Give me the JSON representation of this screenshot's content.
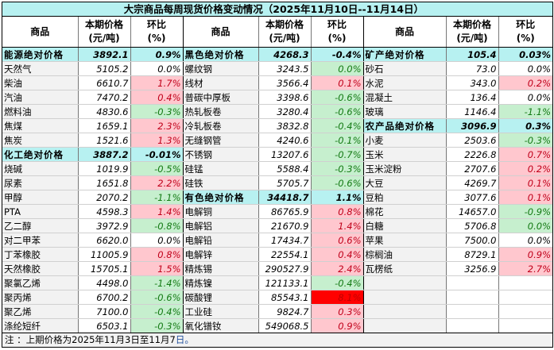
{
  "title": "大宗商品每周现货价格变动情况（2025年11月10日--11月14日）",
  "headers": {
    "name": "商品",
    "price_l1": "本期价格",
    "price_l2": "(元/吨)",
    "chg_l1": "环比",
    "chg_l2": "(%)"
  },
  "columns": [
    {
      "rows": [
        {
          "name": "能源绝对价格",
          "price": "3892.1",
          "chg": "0.9%",
          "type": "cat"
        },
        {
          "name": "天然气",
          "price": "5105.2",
          "chg": "0.0%",
          "type": "flat"
        },
        {
          "name": "柴油",
          "price": "6610.7",
          "chg": "1.7%",
          "type": "up"
        },
        {
          "name": "汽油",
          "price": "7470.2",
          "chg": "0.4%",
          "type": "up"
        },
        {
          "name": "燃料油",
          "price": "4830.6",
          "chg": "-0.3%",
          "type": "down"
        },
        {
          "name": "焦煤",
          "price": "1659.1",
          "chg": "2.3%",
          "type": "up"
        },
        {
          "name": "焦炭",
          "price": "1521.6",
          "chg": "1.3%",
          "type": "up"
        },
        {
          "name": "化工绝对价格",
          "price": "3887.2",
          "chg": "-0.01%",
          "type": "cat"
        },
        {
          "name": "烧碱",
          "price": "1019.9",
          "chg": "-0.5%",
          "type": "down"
        },
        {
          "name": "尿素",
          "price": "1651.8",
          "chg": "2.2%",
          "type": "up"
        },
        {
          "name": "甲醇",
          "price": "2070.2",
          "chg": "-1.1%",
          "type": "down"
        },
        {
          "name": "PTA",
          "price": "4598.3",
          "chg": "1.4%",
          "type": "up"
        },
        {
          "name": "乙二醇",
          "price": "3972.9",
          "chg": "-0.8%",
          "type": "down"
        },
        {
          "name": "对二甲苯",
          "price": "6620.0",
          "chg": "0.0%",
          "type": "flat"
        },
        {
          "name": "丁苯橡胶",
          "price": "11005.9",
          "chg": "0.8%",
          "type": "up"
        },
        {
          "name": "天然橡胶",
          "price": "15705.1",
          "chg": "1.5%",
          "type": "up"
        },
        {
          "name": "聚氯乙烯",
          "price": "4498.0",
          "chg": "-1.4%",
          "type": "down"
        },
        {
          "name": "聚丙烯",
          "price": "6700.2",
          "chg": "-0.6%",
          "type": "down"
        },
        {
          "name": "聚乙烯",
          "price": "7100.0",
          "chg": "-0.4%",
          "type": "down"
        },
        {
          "name": "涤纶短纤",
          "price": "6503.1",
          "chg": "-0.3%",
          "type": "down"
        }
      ]
    },
    {
      "rows": [
        {
          "name": "黑色绝对价格",
          "price": "4268.3",
          "chg": "-0.4%",
          "type": "cat"
        },
        {
          "name": "螺纹钢",
          "price": "3243.5",
          "chg": "0.0%",
          "type": "flat-g"
        },
        {
          "name": "线材",
          "price": "3566.4",
          "chg": "0.1%",
          "type": "up"
        },
        {
          "name": "普碳中厚板",
          "price": "3398.6",
          "chg": "-0.6%",
          "type": "down"
        },
        {
          "name": "热轧板卷",
          "price": "3280.4",
          "chg": "-0.6%",
          "type": "down"
        },
        {
          "name": "冷轧板卷",
          "price": "3832.8",
          "chg": "-0.4%",
          "type": "down"
        },
        {
          "name": "无缝钢管",
          "price": "4240.6",
          "chg": "-0.1%",
          "type": "down"
        },
        {
          "name": "不锈钢",
          "price": "13207.6",
          "chg": "-0.7%",
          "type": "down"
        },
        {
          "name": "硅锰",
          "price": "5588.4",
          "chg": "-0.3%",
          "type": "down"
        },
        {
          "name": "硅铁",
          "price": "5705.7",
          "chg": "-0.6%",
          "type": "down"
        },
        {
          "name": "有色绝对价格",
          "price": "34418.7",
          "chg": "1.1%",
          "type": "cat"
        },
        {
          "name": "电解铜",
          "price": "86765.9",
          "chg": "0.8%",
          "type": "up"
        },
        {
          "name": "电解铝",
          "price": "21670.9",
          "chg": "1.4%",
          "type": "up"
        },
        {
          "name": "电解铅",
          "price": "17434.7",
          "chg": "0.6%",
          "type": "up"
        },
        {
          "name": "电解锌",
          "price": "22554.1",
          "chg": "0.4%",
          "type": "up"
        },
        {
          "name": "精炼锡",
          "price": "290527.9",
          "chg": "2.4%",
          "type": "up"
        },
        {
          "name": "精炼镍",
          "price": "121133.1",
          "chg": "-0.4%",
          "type": "down"
        },
        {
          "name": "碳酸锂",
          "price": "85543.1",
          "chg": "8.1%",
          "type": "hot"
        },
        {
          "name": "工业硅",
          "price": "9824.7",
          "chg": "0.3%",
          "type": "up"
        },
        {
          "name": "氧化镨钕",
          "price": "549068.5",
          "chg": "0.9%",
          "type": "up"
        }
      ]
    },
    {
      "rows": [
        {
          "name": "矿产绝对价格",
          "price": "105.4",
          "chg": "0.03%",
          "type": "cat"
        },
        {
          "name": "砂石",
          "price": "73.0",
          "chg": "0.0%",
          "type": "flat"
        },
        {
          "name": "水泥",
          "price": "343.0",
          "chg": "0.2%",
          "type": "up"
        },
        {
          "name": "混凝土",
          "price": "136.4",
          "chg": "0.0%",
          "type": "flat"
        },
        {
          "name": "玻璃",
          "price": "1146.4",
          "chg": "-1.1%",
          "type": "down"
        },
        {
          "name": "农产品绝对价格",
          "price": "3096.9",
          "chg": "0.3%",
          "type": "cat"
        },
        {
          "name": "小麦",
          "price": "2503.6",
          "chg": "-0.3%",
          "type": "down"
        },
        {
          "name": "玉米",
          "price": "2226.8",
          "chg": "0.7%",
          "type": "up"
        },
        {
          "name": "玉米淀粉",
          "price": "2707.6",
          "chg": "0.2%",
          "type": "up"
        },
        {
          "name": "大豆",
          "price": "4269.7",
          "chg": "0.1%",
          "type": "up"
        },
        {
          "name": "豆粕",
          "price": "3077.6",
          "chg": "0.1%",
          "type": "up"
        },
        {
          "name": "棉花",
          "price": "14657.0",
          "chg": "-0.9%",
          "type": "down"
        },
        {
          "name": "白糖",
          "price": "5706.8",
          "chg": "0.0%",
          "type": "flat-g"
        },
        {
          "name": "苹果",
          "price": "7500.0",
          "chg": "0.0%",
          "type": "flat"
        },
        {
          "name": "棕榈油",
          "price": "8729.1",
          "chg": "0.9%",
          "type": "up"
        },
        {
          "name": "瓦楞纸",
          "price": "3256.9",
          "chg": "2.7%",
          "type": "up"
        },
        {
          "name": "",
          "price": "",
          "chg": "",
          "type": "empty"
        },
        {
          "name": "",
          "price": "",
          "chg": "",
          "type": "empty"
        },
        {
          "name": "",
          "price": "",
          "chg": "",
          "type": "empty"
        },
        {
          "name": "",
          "price": "",
          "chg": "",
          "type": "empty"
        }
      ]
    }
  ],
  "footer": {
    "note_main": "注 ：上期价格为2025年11月3日至11月7",
    "note_end": "日。"
  },
  "colors": {
    "header_bg": "#b7f1f1",
    "up_bg": "#ffc7ce",
    "up_text": "#c0001a",
    "down_bg": "#c6efce",
    "down_text": "#137a13",
    "hot_bg": "#ff0000"
  }
}
